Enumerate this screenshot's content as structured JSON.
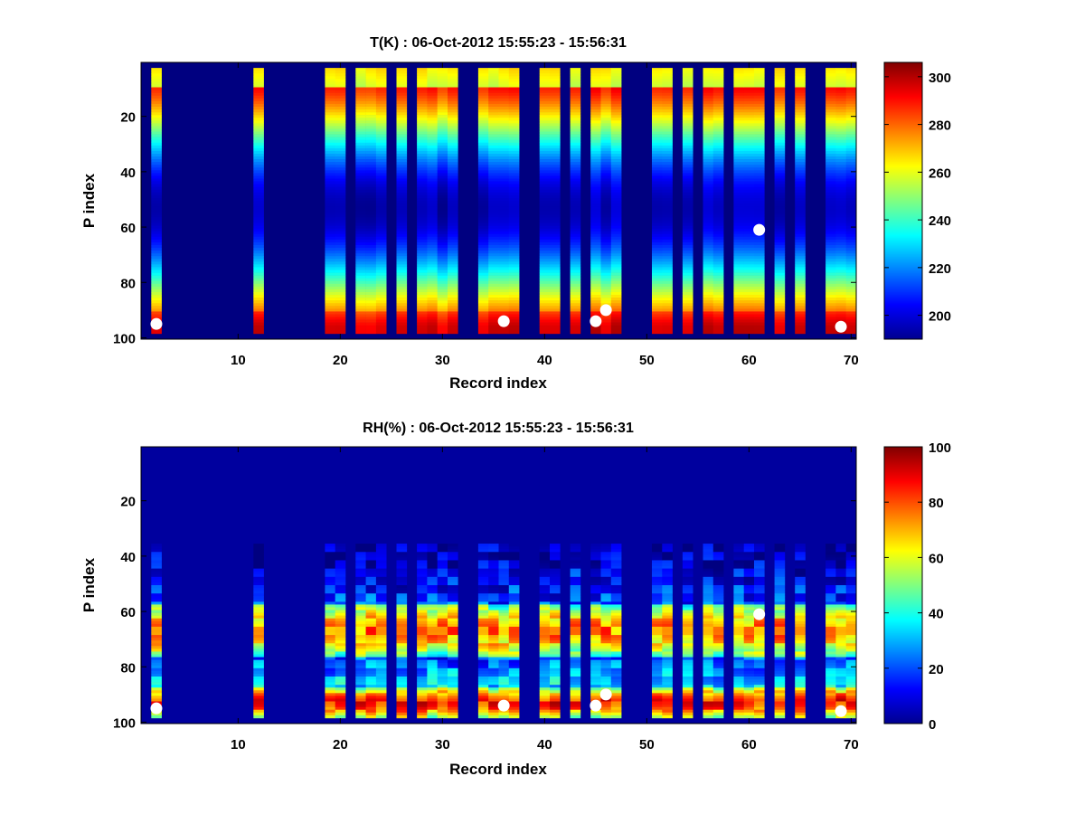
{
  "chart_data": [
    {
      "type": "heatmap",
      "variable": "T",
      "title": "T(K) : 06-Oct-2012 15:55:23 - 15:56:31",
      "xlabel": "Record index",
      "ylabel": "P index",
      "xlim": [
        0.5,
        70.5
      ],
      "ylim": [
        0.5,
        100.5
      ],
      "y_reversed": true,
      "xticks": [
        10,
        20,
        30,
        40,
        50,
        60,
        70
      ],
      "yticks": [
        20,
        40,
        60,
        80,
        100
      ],
      "colormap": "jet",
      "clim": [
        190,
        306
      ],
      "colorbar_ticks": [
        200,
        220,
        240,
        260,
        280,
        300
      ],
      "background_value": 190,
      "profile_rows": [
        3,
        98
      ],
      "profile_columns": [
        2,
        12,
        19,
        20,
        22,
        23,
        24,
        26,
        28,
        29,
        30,
        31,
        34,
        35,
        36,
        37,
        40,
        41,
        43,
        45,
        46,
        47,
        51,
        52,
        54,
        56,
        57,
        59,
        60,
        61,
        63,
        65,
        68,
        69,
        70
      ],
      "markers": [
        {
          "record": 2,
          "p": 95
        },
        {
          "record": 36,
          "p": 94
        },
        {
          "record": 45,
          "p": 94
        },
        {
          "record": 46,
          "p": 90
        },
        {
          "record": 61,
          "p": 61
        },
        {
          "record": 69,
          "p": 96
        }
      ]
    },
    {
      "type": "heatmap",
      "variable": "RH",
      "title": "RH(%) : 06-Oct-2012 15:55:23 - 15:56:31",
      "xlabel": "Record index",
      "ylabel": "P index",
      "xlim": [
        0.5,
        70.5
      ],
      "ylim": [
        0.5,
        100.5
      ],
      "y_reversed": true,
      "xticks": [
        10,
        20,
        30,
        40,
        50,
        60,
        70
      ],
      "yticks": [
        20,
        40,
        60,
        80,
        100
      ],
      "colormap": "jet",
      "clim": [
        0,
        100
      ],
      "colorbar_ticks": [
        0,
        20,
        40,
        60,
        80,
        100
      ],
      "background_value": 3,
      "profile_rows": [
        3,
        98
      ],
      "profile_columns": [
        2,
        12,
        19,
        20,
        22,
        23,
        24,
        26,
        28,
        29,
        30,
        31,
        34,
        35,
        36,
        37,
        40,
        41,
        43,
        45,
        46,
        47,
        51,
        52,
        54,
        56,
        57,
        59,
        60,
        61,
        63,
        65,
        68,
        69,
        70
      ],
      "markers": [
        {
          "record": 2,
          "p": 95
        },
        {
          "record": 36,
          "p": 94
        },
        {
          "record": 45,
          "p": 94
        },
        {
          "record": 46,
          "p": 90
        },
        {
          "record": 61,
          "p": 61
        },
        {
          "record": 69,
          "p": 96
        }
      ]
    }
  ]
}
